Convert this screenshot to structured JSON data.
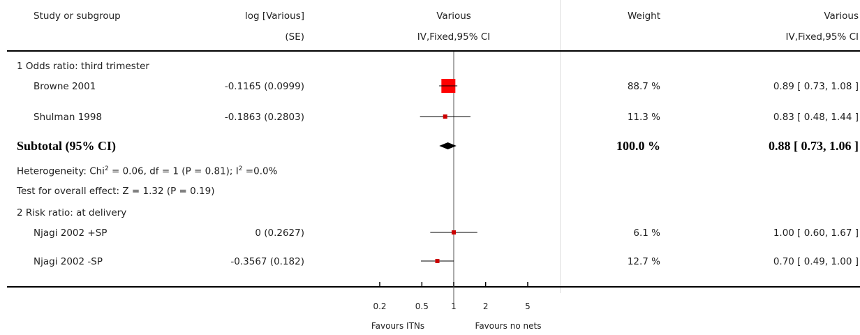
{
  "header": {
    "study": "Study or subgroup",
    "logcol_1": "log [Various]",
    "logcol_2": "(SE)",
    "plot_1": "Various",
    "plot_2": "IV,Fixed,95% CI",
    "weight": "Weight",
    "ci_1": "Various",
    "ci_2": "IV,Fixed,95% CI"
  },
  "subgroup1": {
    "title": "1 Odds ratio: third trimester",
    "subtotal": {
      "label": "Subtotal (95% CI)",
      "weight": "100.0 %",
      "ci": "0.88 [ 0.73, 1.06 ]"
    },
    "heterogeneity_a": "Heterogeneity: Chi",
    "heterogeneity_b": " = 0.06, df = 1 (P = 0.81); I",
    "heterogeneity_c": " =0.0%",
    "sup2": "2",
    "overall": "Test for overall effect: Z = 1.32 (P = 0.19)"
  },
  "subgroup2": {
    "title": "2 Risk ratio: at delivery"
  },
  "studies": [
    {
      "name": "Browne 2001",
      "logse": "-0.1165 (0.0999)",
      "weight": "88.7 %",
      "ci": "0.89 [ 0.73, 1.08 ]"
    },
    {
      "name": "Shulman 1998",
      "logse": "-0.1863 (0.2803)",
      "weight": "11.3 %",
      "ci": "0.83 [ 0.48, 1.44 ]"
    },
    {
      "name": "Njagi 2002 +SP",
      "logse": "0 (0.2627)",
      "weight": "6.1 %",
      "ci": "1.00 [ 0.60, 1.67 ]"
    },
    {
      "name": "Njagi 2002 -SP",
      "logse": "-0.3567 (0.182)",
      "weight": "12.7 %",
      "ci": "0.70 [ 0.49, 1.00 ]"
    }
  ],
  "axis": {
    "favours_left": "Favours ITNs",
    "favours_right": "Favours no nets"
  },
  "colors": {
    "square": "#ff0000",
    "small_square": "#cc0000",
    "diamond": "#000000"
  },
  "chart_data": {
    "type": "forest",
    "scale": "log",
    "xlim": [
      0.2,
      5
    ],
    "xticks": [
      0.2,
      0.5,
      1,
      2,
      5
    ],
    "xtick_labels": [
      "0.2",
      "0.5",
      "1",
      "2",
      "5"
    ],
    "studies": [
      {
        "name": "Browne 2001",
        "est": 0.89,
        "lo": 0.73,
        "hi": 1.08,
        "weight": 88.7
      },
      {
        "name": "Shulman 1998",
        "est": 0.83,
        "lo": 0.48,
        "hi": 1.44,
        "weight": 11.3
      },
      {
        "name": "Njagi 2002 +SP",
        "est": 1.0,
        "lo": 0.6,
        "hi": 1.67,
        "weight": 6.1
      },
      {
        "name": "Njagi 2002 -SP",
        "est": 0.7,
        "lo": 0.49,
        "hi": 1.0,
        "weight": 12.7
      }
    ],
    "subtotals": [
      {
        "name": "Subtotal (95% CI)",
        "est": 0.88,
        "lo": 0.73,
        "hi": 1.06
      }
    ]
  }
}
